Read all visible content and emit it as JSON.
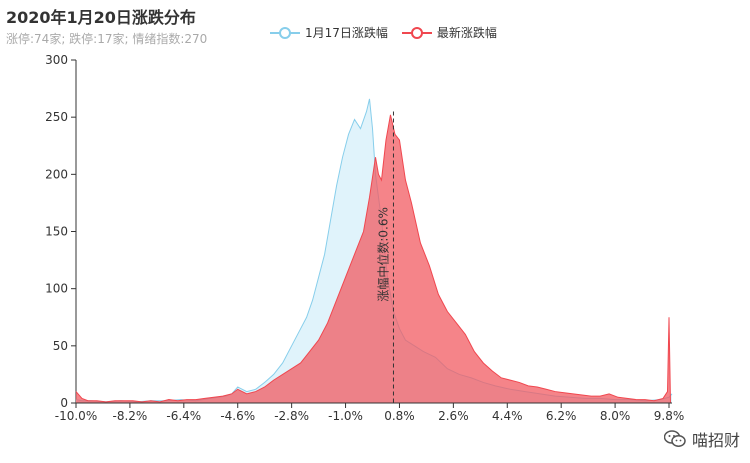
{
  "header": {
    "title": "2020年1月20日涨跌分布",
    "subtitle": "涨停:74家; 跌停:17家; 情绪指数:270"
  },
  "legend": [
    {
      "label": "1月17日涨跌幅",
      "color": "#87ceeb"
    },
    {
      "label": "最新涨跌幅",
      "color": "#f0474f"
    }
  ],
  "watermark": {
    "text": "喵招财",
    "icon": "wechat-icon"
  },
  "chart_data": {
    "type": "area",
    "title": "2020年1月20日涨跌分布",
    "xlabel": "",
    "ylabel": "",
    "xlim": [
      -10.0,
      9.9
    ],
    "ylim": [
      0,
      300
    ],
    "yticks": [
      0,
      50,
      100,
      150,
      200,
      250,
      300
    ],
    "xtick_labels": [
      "-10.0%",
      "-8.2%",
      "-6.4%",
      "-4.6%",
      "-2.8%",
      "-1.0%",
      "0.8%",
      "2.6%",
      "4.4%",
      "6.2%",
      "8.0%",
      "9.8%"
    ],
    "xtick_values": [
      -10.0,
      -8.2,
      -6.4,
      -4.6,
      -2.8,
      -1.0,
      0.8,
      2.6,
      4.4,
      6.2,
      8.0,
      9.8
    ],
    "median_label": "涨幅中位数:0.6%",
    "median_value": 0.6,
    "grid": false,
    "legend_position": "top",
    "series": [
      {
        "name": "1月17日涨跌幅",
        "color": "#87ceeb",
        "fill": "#e0f3fb",
        "x": [
          -10.0,
          -9.8,
          -9.5,
          -9.0,
          -8.5,
          -8.0,
          -7.5,
          -7.0,
          -6.5,
          -6.0,
          -5.5,
          -5.0,
          -4.8,
          -4.6,
          -4.3,
          -4.0,
          -3.7,
          -3.4,
          -3.1,
          -2.8,
          -2.5,
          -2.3,
          -2.1,
          -1.9,
          -1.7,
          -1.5,
          -1.3,
          -1.1,
          -0.9,
          -0.7,
          -0.5,
          -0.3,
          -0.2,
          -0.1,
          0.0,
          0.2,
          0.4,
          0.6,
          0.8,
          1.0,
          1.3,
          1.6,
          2.0,
          2.4,
          2.8,
          3.2,
          3.6,
          4.0,
          4.5,
          5.0,
          5.5,
          6.0,
          6.5,
          7.0,
          7.5,
          8.0,
          8.5,
          9.0,
          9.5,
          9.8,
          9.9
        ],
        "values": [
          3,
          2,
          2,
          1,
          2,
          1,
          2,
          2,
          3,
          2,
          4,
          6,
          8,
          14,
          10,
          12,
          18,
          25,
          35,
          50,
          65,
          75,
          90,
          110,
          130,
          160,
          190,
          215,
          235,
          248,
          240,
          255,
          266,
          240,
          200,
          160,
          110,
          80,
          65,
          55,
          50,
          45,
          40,
          30,
          25,
          22,
          18,
          15,
          12,
          10,
          8,
          6,
          5,
          4,
          4,
          3,
          3,
          2,
          3,
          5,
          8
        ]
      },
      {
        "name": "最新涨跌幅",
        "color": "#f0474f",
        "fill": "#f25b62",
        "x": [
          -10.0,
          -9.8,
          -9.6,
          -9.3,
          -9.0,
          -8.7,
          -8.4,
          -8.1,
          -7.8,
          -7.5,
          -7.2,
          -6.9,
          -6.6,
          -6.3,
          -6.0,
          -5.7,
          -5.4,
          -5.1,
          -4.8,
          -4.6,
          -4.3,
          -4.0,
          -3.7,
          -3.4,
          -3.1,
          -2.8,
          -2.5,
          -2.2,
          -1.9,
          -1.6,
          -1.3,
          -1.0,
          -0.7,
          -0.4,
          -0.2,
          0.0,
          0.1,
          0.2,
          0.35,
          0.5,
          0.65,
          0.8,
          1.0,
          1.2,
          1.5,
          1.8,
          2.1,
          2.4,
          2.7,
          3.0,
          3.3,
          3.6,
          3.9,
          4.2,
          4.5,
          4.8,
          5.1,
          5.4,
          5.7,
          6.0,
          6.3,
          6.6,
          6.9,
          7.2,
          7.5,
          7.8,
          8.1,
          8.4,
          8.7,
          9.0,
          9.3,
          9.6,
          9.75,
          9.8,
          9.85
        ],
        "values": [
          10,
          4,
          2,
          2,
          1,
          2,
          2,
          2,
          1,
          2,
          1,
          3,
          2,
          3,
          3,
          4,
          5,
          6,
          8,
          12,
          8,
          10,
          14,
          20,
          25,
          30,
          35,
          45,
          55,
          70,
          90,
          110,
          130,
          150,
          180,
          215,
          200,
          195,
          230,
          252,
          235,
          230,
          195,
          175,
          140,
          120,
          95,
          80,
          70,
          60,
          45,
          35,
          28,
          22,
          20,
          18,
          15,
          14,
          12,
          10,
          9,
          8,
          7,
          6,
          6,
          8,
          5,
          4,
          3,
          3,
          2,
          4,
          10,
          75,
          0
        ]
      }
    ]
  }
}
